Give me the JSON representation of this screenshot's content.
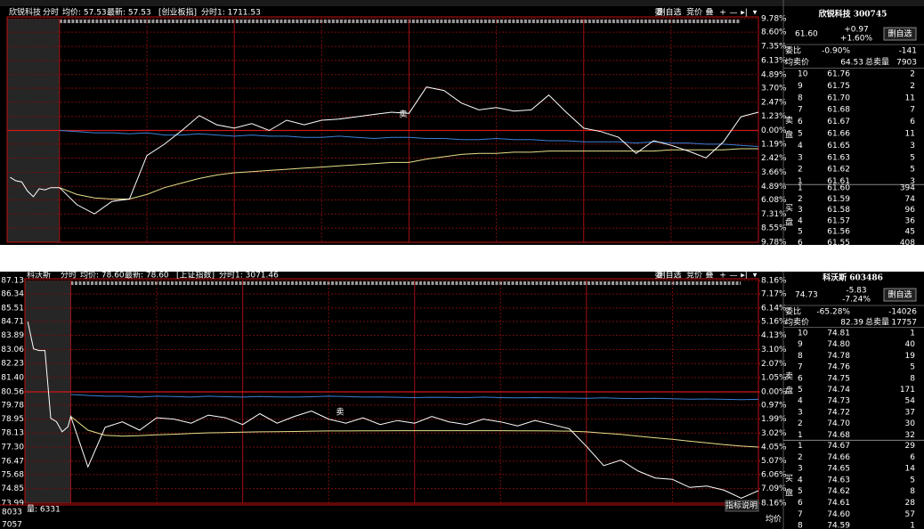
{
  "headers": [
    {
      "name": "欣锐科技",
      "mode": "分时",
      "avg": "均价: 57.53",
      "last": "最新: 57.53",
      "index": "[创业板指]",
      "index_value": "分时1: 1711.53",
      "toolbar": [
        "委",
        "删自选",
        "竞价",
        "叠",
        "+",
        "—",
        "▸|",
        "▾"
      ]
    },
    {
      "name": "科沃斯",
      "mode": "分时",
      "avg": "均价: 78.60",
      "last": "最新: 78.60",
      "index": "[上证指数]",
      "index_value": "分时1: 3071.46",
      "toolbar": [
        "委",
        "删自选",
        "竞价",
        "叠",
        "+",
        "—",
        "▸|",
        "▾"
      ]
    }
  ],
  "chart_data": [
    {
      "type": "line",
      "grid": true,
      "xlim": [
        -18,
        240
      ],
      "x": [
        -17,
        -15,
        -13,
        -11,
        -9,
        -7,
        -5,
        -3,
        0,
        6,
        12,
        18,
        24,
        30,
        36,
        42,
        48,
        54,
        60,
        66,
        72,
        78,
        84,
        90,
        96,
        102,
        108,
        114,
        120,
        126,
        132,
        138,
        144,
        150,
        156,
        162,
        168,
        174,
        180,
        186,
        192,
        198,
        204,
        210,
        216,
        222,
        228,
        234,
        240
      ],
      "ylim": [
        -9.78,
        9.78
      ],
      "yticks": [
        {
          "value": 9.78,
          "label": "9.78%"
        },
        {
          "value": 8.6,
          "label": "8.60%"
        },
        {
          "value": 7.35,
          "label": "7.35%"
        },
        {
          "value": 6.13,
          "label": "6.13%"
        },
        {
          "value": 4.89,
          "label": "4.89%"
        },
        {
          "value": 3.7,
          "label": "3.70%"
        },
        {
          "value": 2.47,
          "label": "2.47%"
        },
        {
          "value": 1.23,
          "label": "1.23%"
        },
        {
          "value": 0,
          "label": "0.00%"
        },
        {
          "value": -1.19,
          "label": "1.19%"
        },
        {
          "value": -2.42,
          "label": "2.42%"
        },
        {
          "value": -3.66,
          "label": "3.66%"
        },
        {
          "value": -4.89,
          "label": "4.89%"
        },
        {
          "value": -6.08,
          "label": "6.08%"
        },
        {
          "value": -7.31,
          "label": "7.31%"
        },
        {
          "value": -8.55,
          "label": "8.55%"
        },
        {
          "value": -9.78,
          "label": "9.78%"
        }
      ],
      "series": [
        {
          "color": "#3a7fd8",
          "values": [
            null,
            null,
            null,
            null,
            null,
            null,
            null,
            null,
            0.0,
            -0.1,
            -0.2,
            -0.2,
            -0.3,
            -0.2,
            -0.4,
            -0.4,
            -0.3,
            -0.4,
            -0.5,
            -0.4,
            -0.5,
            -0.5,
            -0.6,
            -0.6,
            -0.5,
            -0.6,
            -0.7,
            -0.6,
            -0.6,
            -0.7,
            -0.7,
            -0.8,
            -0.8,
            -0.7,
            -0.8,
            -0.8,
            -0.9,
            -0.9,
            -1.0,
            -1.0,
            -1.0,
            -1.1,
            -1.0,
            -1.1,
            -1.1,
            -1.2,
            -1.2,
            -1.3,
            -1.4
          ]
        },
        {
          "color": "#e6e08a",
          "values": [
            null,
            null,
            null,
            null,
            null,
            null,
            null,
            null,
            -5.0,
            -5.6,
            -5.9,
            -6.0,
            -6.0,
            -5.6,
            -5.0,
            -4.6,
            -4.2,
            -3.9,
            -3.7,
            -3.6,
            -3.5,
            -3.4,
            -3.3,
            -3.2,
            -3.1,
            -3.0,
            -2.9,
            -2.8,
            -2.8,
            -2.5,
            -2.3,
            -2.1,
            -2.0,
            -2.0,
            -1.9,
            -1.9,
            -1.8,
            -1.8,
            -1.8,
            -1.8,
            -1.8,
            -1.8,
            -1.8,
            -1.7,
            -1.7,
            -1.7,
            -1.7,
            -1.6,
            -1.6
          ]
        },
        {
          "color": "#ffffff",
          "values": [
            -4.1,
            -4.4,
            -4.5,
            -5.3,
            -5.8,
            -5.1,
            -5.2,
            -5.0,
            -5.0,
            -6.5,
            -7.3,
            -6.2,
            -6.0,
            -2.2,
            -1.2,
            0.0,
            1.3,
            0.5,
            0.2,
            0.6,
            0.0,
            0.9,
            0.5,
            0.9,
            1.0,
            1.2,
            1.4,
            1.6,
            1.5,
            3.8,
            3.5,
            2.4,
            1.8,
            2.0,
            1.7,
            1.8,
            3.1,
            1.6,
            0.2,
            -0.1,
            -0.6,
            -2.0,
            -0.9,
            -1.3,
            -1.8,
            -2.4,
            -1.0,
            1.2,
            1.6
          ]
        }
      ],
      "annotations": [
        {
          "text": "卖",
          "x": 118,
          "y": 1.4
        }
      ]
    },
    {
      "type": "line",
      "grid": true,
      "xlim": [
        -16,
        240
      ],
      "x": [
        -15,
        -13,
        -11,
        -9,
        -7,
        -5,
        -3,
        -1,
        0,
        6,
        12,
        18,
        24,
        30,
        36,
        42,
        48,
        54,
        60,
        66,
        72,
        78,
        84,
        90,
        96,
        102,
        108,
        114,
        120,
        126,
        132,
        138,
        144,
        150,
        156,
        162,
        168,
        174,
        180,
        186,
        192,
        198,
        204,
        210,
        216,
        222,
        228,
        234,
        240
      ],
      "ylim": [
        73.99,
        87.13
      ],
      "yticks": [
        87.13,
        86.34,
        85.51,
        84.71,
        83.89,
        83.06,
        82.23,
        {
          "value": 81.4,
          "label": "81.40"
        },
        80.56,
        79.78,
        78.95,
        78.13,
        {
          "value": 77.3,
          "label": "77.30"
        },
        76.47,
        75.68,
        74.85,
        73.99
      ],
      "y2lim": [
        -8.16,
        8.16
      ],
      "y2ticks": [
        {
          "value": 8.16,
          "label": "8.16%"
        },
        {
          "value": 7.17,
          "label": "7.17%"
        },
        {
          "value": 6.14,
          "label": "6.14%"
        },
        {
          "value": 5.16,
          "label": "5.16%"
        },
        {
          "value": 4.13,
          "label": "4.13%"
        },
        {
          "value": 3.1,
          "label": "3.10%"
        },
        {
          "value": 2.07,
          "label": "2.07%"
        },
        {
          "value": 1.05,
          "label": "1.05%"
        },
        {
          "value": 0,
          "label": "0.00%"
        },
        {
          "value": -0.97,
          "label": "0.97%"
        },
        {
          "value": -1.99,
          "label": "1.99%"
        },
        {
          "value": -3.02,
          "label": "3.02%"
        },
        {
          "value": -4.05,
          "label": "4.05%"
        },
        {
          "value": -5.07,
          "label": "5.07%"
        },
        {
          "value": -6.06,
          "label": "6.06%"
        },
        {
          "value": -7.09,
          "label": "7.09%"
        },
        {
          "value": -8.16,
          "label": "8.16%"
        }
      ],
      "series": [
        {
          "color": "#3a7fd8",
          "values": [
            null,
            null,
            null,
            null,
            null,
            null,
            null,
            null,
            80.4,
            80.35,
            80.3,
            80.3,
            80.25,
            80.3,
            80.28,
            80.25,
            80.3,
            80.27,
            80.25,
            80.28,
            80.26,
            80.25,
            80.27,
            80.3,
            80.28,
            80.25,
            80.26,
            80.24,
            80.22,
            80.24,
            80.23,
            80.22,
            80.25,
            80.22,
            80.2,
            80.22,
            80.2,
            80.19,
            80.18,
            80.2,
            80.17,
            80.16,
            80.18,
            80.15,
            80.13,
            80.14,
            80.12,
            80.1,
            80.12
          ]
        },
        {
          "color": "#e6e08a",
          "values": [
            null,
            null,
            null,
            null,
            null,
            null,
            null,
            null,
            79.11,
            78.3,
            78.0,
            77.95,
            77.98,
            78.02,
            78.06,
            78.1,
            78.14,
            78.16,
            78.18,
            78.2,
            78.21,
            78.22,
            78.24,
            78.25,
            78.25,
            78.26,
            78.26,
            78.27,
            78.27,
            78.27,
            78.27,
            78.27,
            78.27,
            78.27,
            78.26,
            78.26,
            78.25,
            78.24,
            78.2,
            78.12,
            78.05,
            77.95,
            77.85,
            77.76,
            77.65,
            77.55,
            77.45,
            77.36,
            77.3
          ]
        },
        {
          "color": "#ffffff",
          "values": [
            84.7,
            83.1,
            83.0,
            83.0,
            79.0,
            78.8,
            78.2,
            78.5,
            79.11,
            76.13,
            78.47,
            78.79,
            78.3,
            79.03,
            78.95,
            78.71,
            79.19,
            79.03,
            78.63,
            79.27,
            78.71,
            79.11,
            79.43,
            78.95,
            78.71,
            79.03,
            78.63,
            78.87,
            78.71,
            79.11,
            78.79,
            78.63,
            78.95,
            78.79,
            78.55,
            78.87,
            78.63,
            78.38,
            77.34,
            76.21,
            76.53,
            75.89,
            75.48,
            75.4,
            74.92,
            75.0,
            74.76,
            74.28,
            74.73
          ]
        }
      ],
      "annotations": [
        {
          "text": "卖",
          "x": 94,
          "y": 79.35
        }
      ]
    }
  ],
  "volume": {
    "label": "量: 6331",
    "ticks": [
      "8033",
      "7057"
    ],
    "help": "指标说明",
    "avg": "均价"
  },
  "quotes": [
    {
      "name": "欣锐科技 300745",
      "price": "61.60",
      "change": "+0.97",
      "change_pct": "+1.60%",
      "button": "删自选",
      "color": "#ff3b3b",
      "wei_bi_label": "委比",
      "wei_bi": "-0.90%",
      "wei_cha": "-141",
      "avg_sell_label": "均卖价",
      "avg_sell": "64.53",
      "total_sell_label": "总卖量",
      "total_sell": "7903",
      "sell_side": [
        "卖",
        "盘"
      ],
      "buy_side": [
        "买",
        "盘"
      ],
      "asks": [
        [
          "10",
          "61.76",
          "2"
        ],
        [
          "9",
          "61.75",
          "2"
        ],
        [
          "8",
          "61.70",
          "11"
        ],
        [
          "7",
          "61.68",
          "7"
        ],
        [
          "6",
          "61.67",
          "6"
        ],
        [
          "5",
          "61.66",
          "11"
        ],
        [
          "4",
          "61.65",
          "3"
        ],
        [
          "3",
          "61.63",
          "5"
        ],
        [
          "2",
          "61.62",
          "5"
        ],
        [
          "1",
          "61.61",
          "3"
        ]
      ],
      "bids": [
        [
          "1",
          "61.60",
          "394"
        ],
        [
          "2",
          "61.59",
          "74"
        ],
        [
          "3",
          "61.58",
          "96"
        ],
        [
          "4",
          "61.57",
          "36"
        ],
        [
          "5",
          "61.56",
          "45"
        ],
        [
          "6",
          "61.55",
          "408"
        ]
      ]
    },
    {
      "name": "科沃斯 603486",
      "price": "74.73",
      "change": "-5.83",
      "change_pct": "-7.24%",
      "button": "删自选",
      "color": "#22d23a",
      "wei_bi_label": "委比",
      "wei_bi": "-65.28%",
      "wei_cha": "-14026",
      "avg_sell_label": "均卖价",
      "avg_sell": "82.39",
      "total_sell_label": "总卖量",
      "total_sell": "17757",
      "sell_side": [
        "卖",
        "盘"
      ],
      "buy_side": [
        "买",
        "盘"
      ],
      "asks": [
        [
          "10",
          "74.81",
          "1"
        ],
        [
          "9",
          "74.80",
          "40"
        ],
        [
          "8",
          "74.78",
          "19"
        ],
        [
          "7",
          "74.76",
          "5"
        ],
        [
          "6",
          "74.75",
          "8"
        ],
        [
          "5",
          "74.74",
          "171"
        ],
        [
          "4",
          "74.73",
          "54"
        ],
        [
          "3",
          "74.72",
          "37"
        ],
        [
          "2",
          "74.70",
          "30"
        ],
        [
          "1",
          "74.68",
          "32"
        ]
      ],
      "bids": [
        [
          "1",
          "74.67",
          "29"
        ],
        [
          "2",
          "74.66",
          "6"
        ],
        [
          "3",
          "74.65",
          "14"
        ],
        [
          "4",
          "74.63",
          "5"
        ],
        [
          "5",
          "74.62",
          "8"
        ],
        [
          "6",
          "74.61",
          "28"
        ],
        [
          "7",
          "74.60",
          "57"
        ],
        [
          "8",
          "74.59",
          "1"
        ]
      ]
    }
  ]
}
